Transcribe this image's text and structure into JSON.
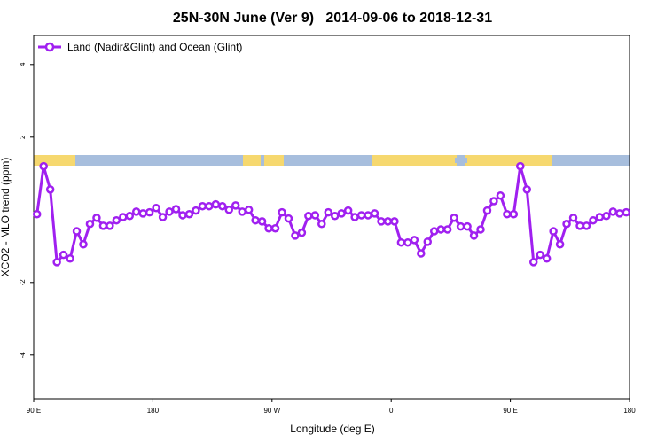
{
  "chart_data": {
    "type": "line",
    "title": "25N-30N June (Ver 9)   2014-09-06 to 2018-12-31",
    "x_label": "Longitude (deg E)",
    "y_label": "XCO2 - MLO trend (ppm)",
    "xlim": [
      90,
      540
    ],
    "ylim": [
      -5.2,
      4.8
    ],
    "xticks": [
      {
        "value": 90,
        "label": "90 E"
      },
      {
        "value": 180,
        "label": "180"
      },
      {
        "value": 270,
        "label": "90 W"
      },
      {
        "value": 360,
        "label": "0"
      },
      {
        "value": 450,
        "label": "90 E"
      },
      {
        "value": 540,
        "label": "180"
      }
    ],
    "yticks": [
      -4,
      -2,
      2,
      4
    ],
    "legend_position": "top-left",
    "x": [
      92.5,
      97.5,
      102.5,
      107.5,
      112.5,
      117.5,
      122.5,
      127.5,
      132.5,
      137.5,
      142.5,
      147.5,
      152.5,
      157.5,
      162.5,
      167.5,
      172.5,
      177.5,
      182.5,
      187.5,
      192.5,
      197.5,
      202.5,
      207.5,
      212.5,
      217.5,
      222.5,
      227.5,
      232.5,
      237.5,
      242.5,
      247.5,
      252.5,
      257.5,
      262.5,
      267.5,
      272.5,
      277.5,
      282.5,
      287.5,
      292.5,
      297.5,
      302.5,
      307.5,
      312.5,
      317.5,
      322.5,
      327.5,
      332.5,
      337.5,
      342.5,
      347.5,
      352.5,
      357.5,
      362.5,
      367.5,
      372.5,
      377.5,
      382.5,
      387.5,
      392.5,
      397.5,
      402.5,
      407.5,
      412.5,
      417.5,
      422.5,
      427.5,
      432.5,
      437.5,
      442.5,
      447.5,
      452.5,
      457.5,
      462.5,
      467.5,
      472.5,
      477.5,
      482.5,
      487.5,
      492.5,
      497.5,
      502.5,
      507.5,
      512.5,
      517.5,
      522.5,
      527.5,
      532.5,
      537.5
    ],
    "series": [
      {
        "name": "Land (Nadir&Glint) and Ocean (Glint)",
        "color": "#a020f0",
        "values": [
          -0.12,
          1.2,
          0.56,
          -1.44,
          -1.24,
          -1.34,
          -0.59,
          -0.95,
          -0.39,
          -0.22,
          -0.44,
          -0.44,
          -0.29,
          -0.2,
          -0.17,
          -0.05,
          -0.1,
          -0.07,
          0.05,
          -0.2,
          -0.05,
          0.02,
          -0.15,
          -0.12,
          -0.02,
          0.1,
          0.1,
          0.15,
          0.1,
          0,
          0.12,
          -0.05,
          0,
          -0.29,
          -0.32,
          -0.51,
          -0.51,
          -0.07,
          -0.24,
          -0.71,
          -0.63,
          -0.17,
          -0.15,
          -0.39,
          -0.07,
          -0.17,
          -0.1,
          -0.02,
          -0.2,
          -0.15,
          -0.15,
          -0.1,
          -0.32,
          -0.32,
          -0.32,
          -0.9,
          -0.9,
          -0.83,
          -1.2,
          -0.88,
          -0.59,
          -0.54,
          -0.54,
          -0.22,
          -0.46,
          -0.46,
          -0.71,
          -0.54,
          -0.02,
          0.24,
          0.39,
          -0.12,
          -0.12,
          1.2,
          0.56,
          -1.44,
          -1.24,
          -1.34,
          -0.59,
          -0.95,
          -0.39,
          -0.22,
          -0.44,
          -0.44,
          -0.29,
          -0.2,
          -0.17,
          -0.05,
          -0.1,
          -0.07
        ]
      }
    ]
  }
}
